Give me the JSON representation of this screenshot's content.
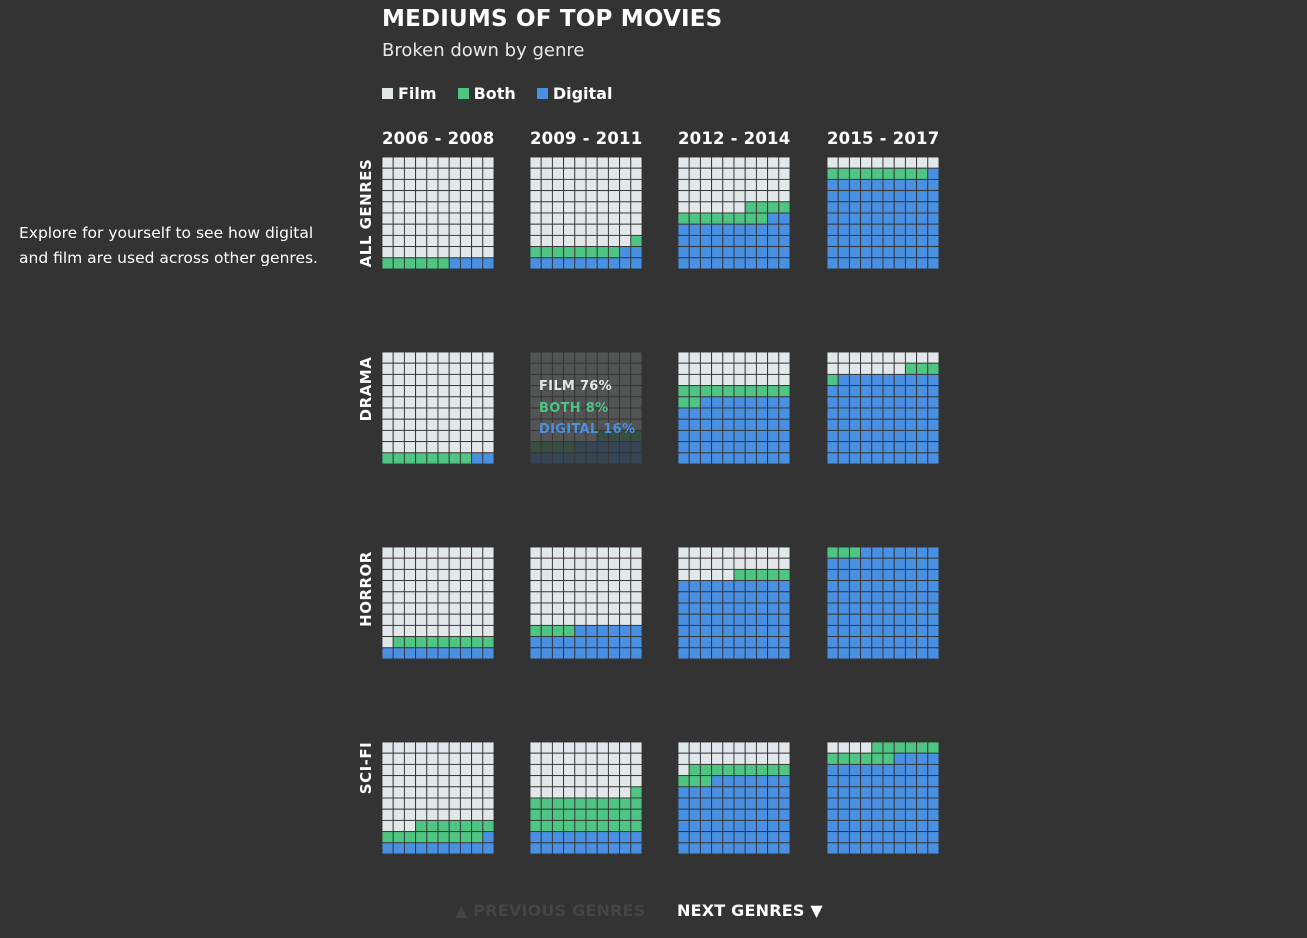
{
  "sidebar": {
    "note": "Explore for yourself to see how digital and film are used across other genres."
  },
  "colors": {
    "background": "#333333",
    "film": "#e2e8ea",
    "both": "#4fc584",
    "digital": "#4a90e2",
    "gridline": "#333333"
  },
  "chart_data": {
    "type": "waffle",
    "title": "MEDIUMS OF TOP MOVIES",
    "subtitle": "Broken down by genre",
    "units": "percent of top movies (each square = 1%)",
    "legend": [
      {
        "key": "film",
        "label": "Film"
      },
      {
        "key": "both",
        "label": "Both"
      },
      {
        "key": "digital",
        "label": "Digital"
      }
    ],
    "periods": [
      "2006 - 2008",
      "2009 - 2011",
      "2012 - 2014",
      "2015 - 2017"
    ],
    "genres": [
      {
        "name": "ALL GENRES",
        "cells": [
          {
            "film": 90,
            "both": 6,
            "digital": 4
          },
          {
            "film": 79,
            "both": 9,
            "digital": 12
          },
          {
            "film": 46,
            "both": 12,
            "digital": 42
          },
          {
            "film": 10,
            "both": 9,
            "digital": 81
          }
        ]
      },
      {
        "name": "DRAMA",
        "cells": [
          {
            "film": 90,
            "both": 8,
            "digital": 2
          },
          {
            "film": 76,
            "both": 8,
            "digital": 16
          },
          {
            "film": 30,
            "both": 12,
            "digital": 58
          },
          {
            "film": 17,
            "both": 4,
            "digital": 79
          }
        ]
      },
      {
        "name": "HORROR",
        "cells": [
          {
            "film": 81,
            "both": 9,
            "digital": 10
          },
          {
            "film": 70,
            "both": 4,
            "digital": 26
          },
          {
            "film": 25,
            "both": 5,
            "digital": 70
          },
          {
            "film": 0,
            "both": 3,
            "digital": 97
          }
        ]
      },
      {
        "name": "SCI-FI",
        "cells": [
          {
            "film": 73,
            "both": 16,
            "digital": 11
          },
          {
            "film": 49,
            "both": 31,
            "digital": 20
          },
          {
            "film": 21,
            "both": 12,
            "digital": 67
          },
          {
            "film": 4,
            "both": 12,
            "digital": 84
          }
        ]
      }
    ],
    "tooltip": {
      "genre": "DRAMA",
      "period": "2009 - 2011",
      "film_text": "FILM 76%",
      "both_text": "BOTH 8%",
      "digital_text": "DIGITAL 16%"
    }
  },
  "navigation": {
    "previous_label": "▲ PREVIOUS GENRES",
    "next_label": "NEXT GENRES ▼"
  }
}
